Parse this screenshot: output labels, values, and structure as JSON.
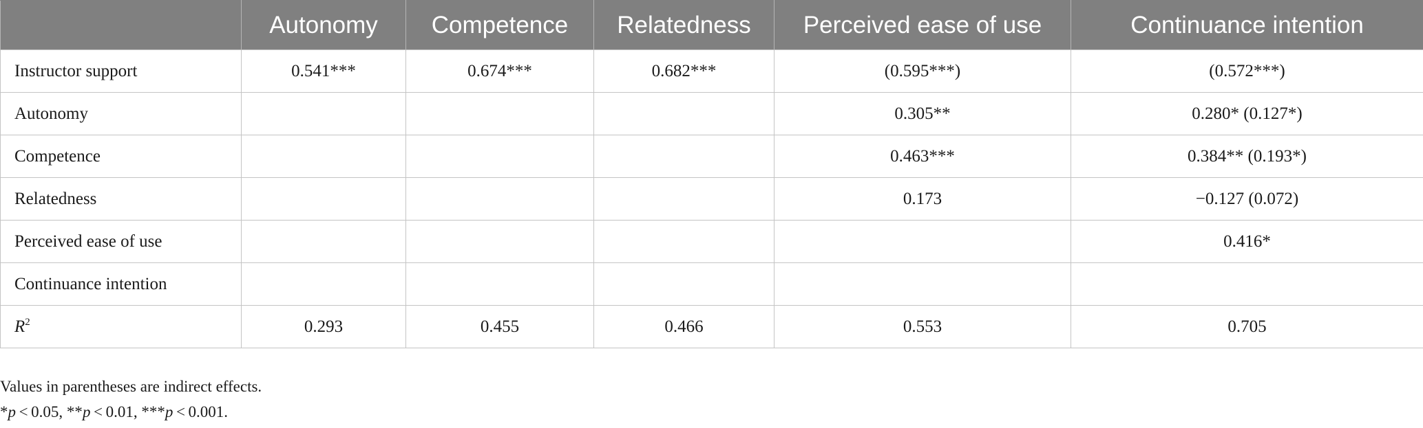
{
  "table": {
    "headers": [
      "",
      "Autonomy",
      "Competence",
      "Relatedness",
      "Perceived ease of use",
      "Continuance intention"
    ],
    "rows": [
      {
        "label": "Instructor support",
        "cells": [
          "0.541***",
          "0.674***",
          "0.682***",
          "(0.595***)",
          "(0.572***)"
        ]
      },
      {
        "label": "Autonomy",
        "cells": [
          "",
          "",
          "",
          "0.305**",
          "0.280* (0.127*)"
        ]
      },
      {
        "label": "Competence",
        "cells": [
          "",
          "",
          "",
          "0.463***",
          "0.384** (0.193*)"
        ]
      },
      {
        "label": "Relatedness",
        "cells": [
          "",
          "",
          "",
          "0.173",
          "−0.127 (0.072)"
        ]
      },
      {
        "label": "Perceived ease of use",
        "cells": [
          "",
          "",
          "",
          "",
          "0.416*"
        ]
      },
      {
        "label": "Continuance intention",
        "cells": [
          "",
          "",
          "",
          "",
          ""
        ]
      }
    ],
    "r2_row": {
      "label_letter": "R",
      "label_sup": "2",
      "cells": [
        "0.293",
        "0.455",
        "0.466",
        "0.553",
        "0.705"
      ]
    }
  },
  "notes": {
    "line1": "Values in parentheses are indirect effects.",
    "line2_parts": [
      "*",
      "p",
      " < 0.05, **",
      "p",
      " < 0.01, ***",
      "p",
      " < 0.001."
    ]
  }
}
